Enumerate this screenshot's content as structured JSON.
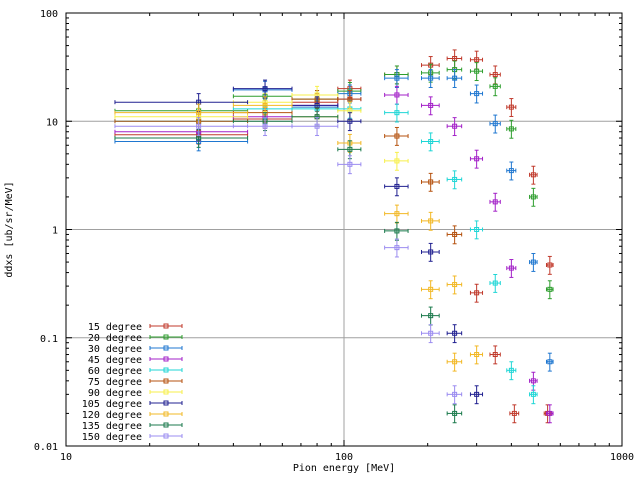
{
  "chart_data": {
    "type": "scatter",
    "title": "",
    "xlabel": "Pion energy [MeV]",
    "ylabel": "ddxs [ub/sr/MeV]",
    "x_scale": "log",
    "y_scale": "log",
    "xlim": [
      10,
      1000
    ],
    "ylim": [
      0.01,
      100
    ],
    "grid": true,
    "legend_position": "bottom-left",
    "x_ticks": [
      "10",
      "100",
      "1000"
    ],
    "y_ticks": [
      "0.01",
      "0.1",
      "1",
      "10",
      "100"
    ],
    "series": [
      {
        "name": "15 degree",
        "color": "#c0392b",
        "points": [
          [
            30,
            7.5
          ],
          [
            52,
            10.5
          ],
          [
            80,
            15
          ],
          [
            105,
            20
          ],
          [
            155,
            27
          ],
          [
            205,
            33
          ],
          [
            250,
            38
          ],
          [
            300,
            37
          ],
          [
            350,
            27
          ],
          [
            400,
            13.5
          ],
          [
            480,
            3.2
          ],
          [
            550,
            0.47
          ],
          [
            300,
            0.26
          ],
          [
            350,
            0.07
          ],
          [
            410,
            0.02
          ],
          [
            540,
            0.02
          ]
        ],
        "xerr": [
          [
            15,
            45
          ],
          [
            40,
            65
          ],
          [
            65,
            95
          ],
          [
            95,
            115
          ],
          [
            140,
            170
          ],
          [
            190,
            220
          ],
          [
            235,
            265
          ],
          [
            285,
            315
          ],
          [
            335,
            365
          ],
          [
            385,
            415
          ],
          [
            465,
            495
          ],
          [
            535,
            565
          ],
          [
            285,
            315
          ],
          [
            335,
            365
          ],
          [
            395,
            425
          ],
          [
            525,
            555
          ]
        ]
      },
      {
        "name": "20 degree",
        "color": "#2e9e2e",
        "points": [
          [
            30,
            12.5
          ],
          [
            52,
            17
          ],
          [
            80,
            16
          ],
          [
            105,
            19
          ],
          [
            155,
            27
          ],
          [
            205,
            28
          ],
          [
            250,
            30
          ],
          [
            300,
            29
          ],
          [
            350,
            21
          ],
          [
            400,
            8.5
          ],
          [
            480,
            2
          ],
          [
            550,
            0.28
          ]
        ],
        "xerr": [
          [
            15,
            45
          ],
          [
            40,
            65
          ],
          [
            65,
            95
          ],
          [
            95,
            115
          ],
          [
            140,
            170
          ],
          [
            190,
            220
          ],
          [
            235,
            265
          ],
          [
            285,
            315
          ],
          [
            335,
            365
          ],
          [
            385,
            415
          ],
          [
            465,
            495
          ],
          [
            535,
            565
          ]
        ]
      },
      {
        "name": "30 degree",
        "color": "#1f77d0",
        "points": [
          [
            30,
            6.5
          ],
          [
            52,
            19.5
          ],
          [
            80,
            13.5
          ],
          [
            105,
            18
          ],
          [
            155,
            25
          ],
          [
            205,
            25
          ],
          [
            250,
            25
          ],
          [
            300,
            18
          ],
          [
            350,
            9.5
          ],
          [
            400,
            3.5
          ],
          [
            480,
            0.5
          ],
          [
            550,
            0.06
          ]
        ],
        "xerr": [
          [
            15,
            45
          ],
          [
            40,
            65
          ],
          [
            65,
            95
          ],
          [
            95,
            115
          ],
          [
            140,
            170
          ],
          [
            190,
            220
          ],
          [
            235,
            265
          ],
          [
            285,
            315
          ],
          [
            335,
            365
          ],
          [
            385,
            415
          ],
          [
            465,
            495
          ],
          [
            535,
            565
          ]
        ]
      },
      {
        "name": "45 degree",
        "color": "#a321c8",
        "points": [
          [
            30,
            8
          ],
          [
            52,
            11
          ],
          [
            80,
            14
          ],
          [
            105,
            16
          ],
          [
            155,
            17.5
          ],
          [
            205,
            14
          ],
          [
            250,
            9
          ],
          [
            300,
            4.5
          ],
          [
            350,
            1.8
          ],
          [
            400,
            0.44
          ],
          [
            480,
            0.04
          ],
          [
            550,
            0.02
          ]
        ],
        "xerr": [
          [
            15,
            45
          ],
          [
            40,
            65
          ],
          [
            65,
            95
          ],
          [
            95,
            115
          ],
          [
            140,
            170
          ],
          [
            190,
            220
          ],
          [
            235,
            265
          ],
          [
            285,
            315
          ],
          [
            335,
            365
          ],
          [
            385,
            415
          ],
          [
            465,
            495
          ],
          [
            535,
            565
          ]
        ]
      },
      {
        "name": "60 degree",
        "color": "#1fd6d6",
        "points": [
          [
            30,
            10
          ],
          [
            52,
            13
          ],
          [
            80,
            13
          ],
          [
            105,
            13
          ],
          [
            155,
            12
          ],
          [
            205,
            6.5
          ],
          [
            250,
            2.9
          ],
          [
            300,
            1
          ],
          [
            350,
            0.32
          ],
          [
            400,
            0.05
          ],
          [
            480,
            0.03
          ]
        ],
        "xerr": [
          [
            15,
            45
          ],
          [
            40,
            65
          ],
          [
            65,
            95
          ],
          [
            95,
            115
          ],
          [
            140,
            170
          ],
          [
            190,
            220
          ],
          [
            235,
            265
          ],
          [
            285,
            315
          ],
          [
            335,
            365
          ],
          [
            385,
            415
          ],
          [
            465,
            495
          ]
        ]
      },
      {
        "name": "75 degree",
        "color": "#b5520f",
        "points": [
          [
            30,
            10
          ],
          [
            52,
            12
          ],
          [
            80,
            16
          ],
          [
            105,
            16
          ],
          [
            155,
            7.3
          ],
          [
            205,
            2.75
          ],
          [
            250,
            0.9
          ]
        ],
        "xerr": [
          [
            15,
            45
          ],
          [
            40,
            65
          ],
          [
            65,
            95
          ],
          [
            95,
            115
          ],
          [
            140,
            170
          ],
          [
            190,
            220
          ],
          [
            235,
            265
          ]
        ]
      },
      {
        "name": "90 degree",
        "color": "#f7ef4a",
        "points": [
          [
            30,
            11
          ],
          [
            52,
            15
          ],
          [
            80,
            17.5
          ],
          [
            105,
            12.5
          ],
          [
            155,
            4.3
          ]
        ],
        "xerr": [
          [
            15,
            45
          ],
          [
            40,
            65
          ],
          [
            65,
            95
          ],
          [
            95,
            115
          ],
          [
            140,
            170
          ]
        ]
      },
      {
        "name": "105 degree",
        "color": "#202090",
        "points": [
          [
            30,
            15
          ],
          [
            52,
            20
          ],
          [
            80,
            14
          ],
          [
            105,
            10
          ],
          [
            155,
            2.5
          ],
          [
            205,
            0.62
          ],
          [
            250,
            0.11
          ],
          [
            300,
            0.03
          ]
        ],
        "xerr": [
          [
            15,
            45
          ],
          [
            40,
            65
          ],
          [
            65,
            95
          ],
          [
            95,
            115
          ],
          [
            140,
            170
          ],
          [
            190,
            220
          ],
          [
            235,
            265
          ],
          [
            285,
            315
          ]
        ]
      },
      {
        "name": "120 degree",
        "color": "#f2b825",
        "points": [
          [
            30,
            12
          ],
          [
            52,
            14
          ],
          [
            80,
            11
          ],
          [
            105,
            6.3
          ],
          [
            155,
            1.4
          ],
          [
            205,
            1.2
          ],
          [
            250,
            0.31
          ],
          [
            300,
            0.07
          ],
          [
            205,
            0.28
          ],
          [
            250,
            0.06
          ]
        ],
        "xerr": [
          [
            15,
            45
          ],
          [
            40,
            65
          ],
          [
            65,
            95
          ],
          [
            95,
            115
          ],
          [
            140,
            170
          ],
          [
            190,
            220
          ],
          [
            235,
            265
          ],
          [
            285,
            315
          ],
          [
            190,
            220
          ],
          [
            235,
            265
          ]
        ]
      },
      {
        "name": "135 degree",
        "color": "#1b7a4c",
        "points": [
          [
            30,
            7
          ],
          [
            52,
            10
          ],
          [
            80,
            11
          ],
          [
            105,
            5.5
          ],
          [
            155,
            0.97
          ],
          [
            205,
            0.16
          ],
          [
            250,
            0.02
          ]
        ],
        "xerr": [
          [
            15,
            45
          ],
          [
            40,
            65
          ],
          [
            65,
            95
          ],
          [
            95,
            115
          ],
          [
            140,
            170
          ],
          [
            190,
            220
          ],
          [
            235,
            265
          ]
        ]
      },
      {
        "name": "150 degree",
        "color": "#9b8cf0",
        "points": [
          [
            30,
            9
          ],
          [
            52,
            9
          ],
          [
            80,
            9
          ],
          [
            105,
            4
          ],
          [
            155,
            0.68
          ],
          [
            205,
            0.11
          ],
          [
            250,
            0.03
          ]
        ],
        "xerr": [
          [
            15,
            45
          ],
          [
            40,
            65
          ],
          [
            65,
            95
          ],
          [
            95,
            115
          ],
          [
            140,
            170
          ],
          [
            190,
            220
          ],
          [
            235,
            265
          ]
        ]
      }
    ]
  }
}
